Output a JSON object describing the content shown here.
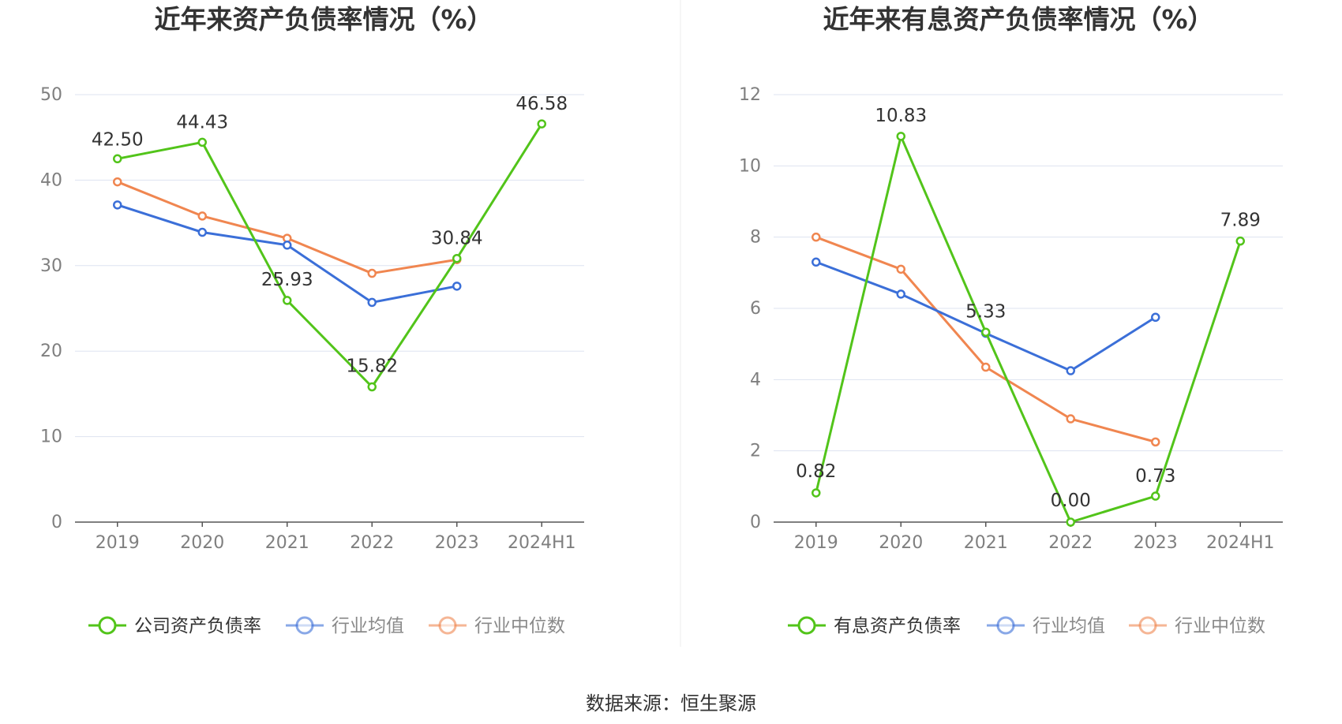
{
  "source": "数据来源：恒生聚源",
  "chart_data": [
    {
      "type": "line",
      "title": "近年来资产负债率情况（%）",
      "categories": [
        "2019",
        "2020",
        "2021",
        "2022",
        "2023",
        "2024H1"
      ],
      "ylim": [
        0,
        50
      ],
      "yticks": [
        0,
        10,
        20,
        30,
        40,
        50
      ],
      "grid": true,
      "legend_position": "bottom",
      "series": [
        {
          "name": "公司资产负债率",
          "color": "#52c41a",
          "values": [
            42.5,
            44.43,
            25.93,
            15.82,
            30.84,
            46.58
          ],
          "labels": [
            "42.50",
            "44.43",
            "25.93",
            "15.82",
            "30.84",
            "46.58"
          ]
        },
        {
          "name": "行业均值",
          "color": "#3b6fd8",
          "values": [
            37.1,
            33.9,
            32.4,
            25.7,
            27.6,
            null
          ]
        },
        {
          "name": "行业中位数",
          "color": "#f08650",
          "values": [
            39.8,
            35.8,
            33.2,
            29.1,
            30.7,
            null
          ]
        }
      ]
    },
    {
      "type": "line",
      "title": "近年来有息资产负债率情况（%）",
      "categories": [
        "2019",
        "2020",
        "2021",
        "2022",
        "2023",
        "2024H1"
      ],
      "ylim": [
        0,
        12
      ],
      "yticks": [
        0,
        2,
        4,
        6,
        8,
        10,
        12
      ],
      "grid": true,
      "legend_position": "bottom",
      "series": [
        {
          "name": "有息资产负债率",
          "color": "#52c41a",
          "values": [
            0.82,
            10.83,
            5.33,
            0.0,
            0.73,
            7.89
          ],
          "labels": [
            "0.82",
            "10.83",
            "5.33",
            "0.00",
            "0.73",
            "7.89"
          ]
        },
        {
          "name": "行业均值",
          "color": "#3b6fd8",
          "values": [
            7.3,
            6.4,
            5.3,
            4.25,
            5.75,
            null
          ]
        },
        {
          "name": "行业中位数",
          "color": "#f08650",
          "values": [
            8.0,
            7.1,
            4.35,
            2.9,
            2.25,
            null
          ]
        }
      ]
    }
  ]
}
